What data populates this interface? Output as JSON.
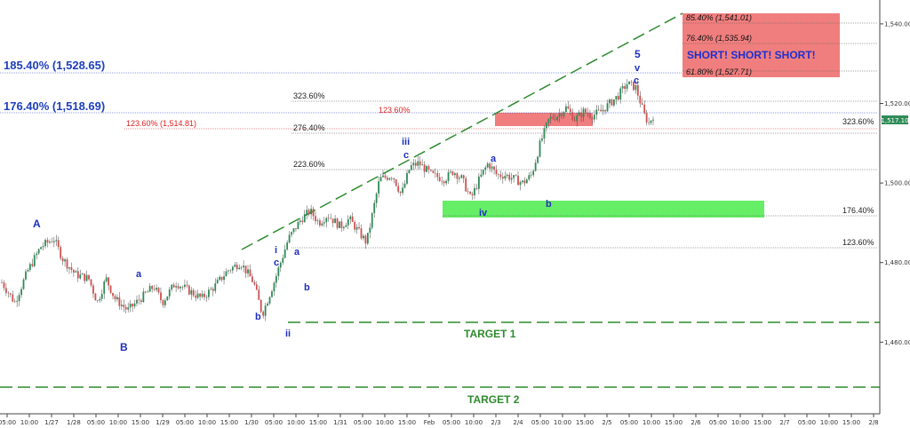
{
  "chart_data": {
    "type": "candlestick",
    "ylim": [
      1442,
      1546
    ],
    "y_ticks": [
      {
        "value": 1540,
        "label": "1,540.00"
      },
      {
        "value": 1520,
        "label": "1,520.00"
      },
      {
        "value": 1500,
        "label": "1,500.00"
      },
      {
        "value": 1480,
        "label": "1,480.00"
      },
      {
        "value": 1460,
        "label": "1,460.00"
      }
    ],
    "x_ticks": [
      "05:00",
      "10:00",
      "1/27",
      "1/28",
      "05:00",
      "10:00",
      "15:00",
      "1/29",
      "05:00",
      "10:00",
      "15:00",
      "1/30",
      "05:00",
      "10:00",
      "15:00",
      "1/31",
      "05:00",
      "10:00",
      "15:00",
      "Feb",
      "05:00",
      "10:00",
      "2/3",
      "2/4",
      "05:00",
      "10:00",
      "15:00",
      "2/5",
      "05:00",
      "10:00",
      "15:00",
      "2/6",
      "05:00",
      "10:00",
      "15:00",
      "2/7",
      "05:00",
      "10:00",
      "15:00",
      "2/8"
    ],
    "current_price": "1,517.10",
    "price_path": [
      [
        0,
        1475
      ],
      [
        3,
        1470
      ],
      [
        6,
        1478
      ],
      [
        9,
        1484
      ],
      [
        12,
        1486
      ],
      [
        14,
        1481
      ],
      [
        17,
        1477
      ],
      [
        20,
        1476
      ],
      [
        22,
        1470
      ],
      [
        24,
        1476
      ],
      [
        26,
        1471
      ],
      [
        29,
        1468
      ],
      [
        32,
        1471
      ],
      [
        35,
        1474
      ],
      [
        37,
        1470
      ],
      [
        40,
        1475
      ],
      [
        43,
        1473
      ],
      [
        46,
        1471
      ],
      [
        49,
        1474
      ],
      [
        52,
        1478
      ],
      [
        55,
        1480
      ],
      [
        58,
        1475
      ],
      [
        60,
        1467
      ],
      [
        63,
        1476
      ],
      [
        66,
        1486
      ],
      [
        69,
        1491
      ],
      [
        71,
        1493
      ],
      [
        73,
        1490
      ],
      [
        75,
        1492
      ],
      [
        78,
        1489
      ],
      [
        80,
        1491
      ],
      [
        82,
        1488
      ],
      [
        84,
        1485
      ],
      [
        87,
        1501
      ],
      [
        90,
        1502
      ],
      [
        92,
        1497
      ],
      [
        94,
        1504
      ],
      [
        96,
        1505
      ],
      [
        99,
        1502
      ],
      [
        102,
        1501
      ],
      [
        104,
        1503
      ],
      [
        106,
        1501
      ],
      [
        108,
        1496
      ],
      [
        110,
        1501
      ],
      [
        112,
        1505
      ],
      [
        114,
        1502
      ],
      [
        116,
        1502
      ],
      [
        118,
        1501
      ],
      [
        120,
        1500
      ],
      [
        122,
        1502
      ],
      [
        124,
        1510
      ],
      [
        126,
        1516
      ],
      [
        128,
        1517
      ],
      [
        130,
        1519
      ],
      [
        132,
        1516
      ],
      [
        134,
        1518
      ],
      [
        136,
        1517
      ],
      [
        138,
        1518
      ],
      [
        140,
        1520
      ],
      [
        142,
        1522
      ],
      [
        144,
        1525
      ],
      [
        146,
        1524
      ],
      [
        148,
        1517
      ],
      [
        149,
        1515
      ],
      [
        150,
        1517
      ]
    ],
    "horizontal_levels": [
      {
        "label": "85.40% (1,541.01)",
        "value": 1541.01
      },
      {
        "label": "76.40% (1,535.94)",
        "value": 1535.94
      },
      {
        "label": "61.80% (1,527.71)",
        "value": 1527.71
      },
      {
        "label": "185.40% (1,528.65)",
        "value": 1528.65
      },
      {
        "label": "176.40% (1,518.69)",
        "value": 1518.69
      },
      {
        "label": "123.60% (1,514.81)",
        "value": 1514.81
      },
      {
        "label": "323.60%",
        "value": 1522
      },
      {
        "label": "276.40%",
        "value": 1515.5
      },
      {
        "label": "223.60%",
        "value": 1505
      },
      {
        "label": "323.60%",
        "value": 1516
      },
      {
        "label": "176.40%",
        "value": 1493
      },
      {
        "label": "123.60%",
        "value": 1484.5
      },
      {
        "label": "123.60%",
        "value": 1519.5
      }
    ],
    "targets": [
      {
        "label": "TARGET 1",
        "value": 1467
      },
      {
        "label": "TARGET 2",
        "value": 1451
      }
    ],
    "zones": [
      {
        "label": "SHORT! SHORT! SHORT!",
        "from": 1527.7,
        "to": 1543.5,
        "color": "#f07070"
      },
      {
        "label": "",
        "from": 1516,
        "to": 1520,
        "color": "#f07070"
      },
      {
        "label": "",
        "from": 1493,
        "to": 1497,
        "color": "#66ee66"
      }
    ],
    "wave_labels": [
      "A",
      "B",
      "a",
      "b",
      "i",
      "c",
      "ii",
      "a",
      "b",
      "iii",
      "c",
      "iv",
      "a",
      "b",
      "5",
      "v",
      "c"
    ],
    "trendline": "upper channel, dashed green"
  },
  "labels": {
    "fib_1854": "185.40% (1,528.65)",
    "fib_1764": "176.40% (1,518.69)",
    "fib_1236_red": "123.60% (1,514.81)",
    "fib_1236_red_short": "123.60%",
    "fib_3236_a": "323.60%",
    "fib_2764": "276.40%",
    "fib_2236": "223.60%",
    "fib_3236_b": "323.60%",
    "fib_1764_b": "176.40%",
    "fib_1236_b": "123.60%",
    "box_854": "85.40% (1,541.01)",
    "box_764": "76.40% (1,535.94)",
    "box_618": "61.80% (1,527.71)",
    "short": "SHORT! SHORT! SHORT!",
    "target1": "TARGET 1",
    "target2": "TARGET 2",
    "price": "1,517.10",
    "w_A": "A",
    "w_B": "B",
    "w_a1": "a",
    "w_b1": "b",
    "w_i": "i",
    "w_c1": "c",
    "w_ii": "ii",
    "w_a2": "a",
    "w_b2": "b",
    "w_iii": "iii",
    "w_c2": "c",
    "w_iv": "iv",
    "w_a3": "a",
    "w_b3": "b",
    "w_5": "5",
    "w_v": "v",
    "w_c3": "c"
  },
  "colors": {
    "up_candle": "#2e8b57",
    "down_candle": "#d05050",
    "wick": "#444444",
    "trend": "#2e8b2e",
    "fib_blue": "#1f3fbf",
    "fib_red": "#dd2222"
  }
}
